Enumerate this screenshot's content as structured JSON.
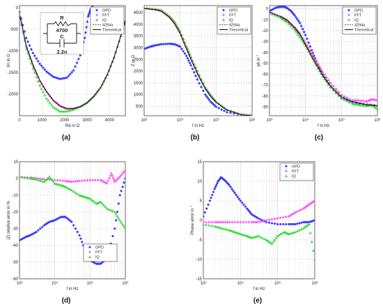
{
  "colors": {
    "GPD": "#3a3aff",
    "FFT": "#ff33ff",
    "IQ": "#33dd33",
    "4294a": "#cc2222",
    "Theoretical": "#111111"
  },
  "chart_data": [
    {
      "panel": "(a)",
      "type": "scatter",
      "xlabel": "Re in Ω",
      "ylabel": "Im in Ω",
      "xlim": [
        0,
        4700
      ],
      "ylim": [
        -2500,
        50
      ],
      "xticks": [
        "0",
        "1000",
        "2000",
        "3000",
        "4000"
      ],
      "yticks": [
        "0",
        "-500",
        "-1000",
        "-1500",
        "-2000"
      ],
      "xtick_vals": [
        0,
        1000,
        2000,
        3000,
        4000
      ],
      "ytick_vals": [
        0,
        -500,
        -1000,
        -1500,
        -2000
      ],
      "legend": "top-right",
      "inset": {
        "R_label": "R",
        "R_value": "4700",
        "C_label": "C",
        "C_value": "2.2n"
      },
      "series": [
        {
          "name": "GPD",
          "style": "marker",
          "x": [
            0,
            300,
            600,
            900,
            1200,
            1500,
            1800,
            2100,
            2400,
            2700,
            2900,
            3050,
            3150,
            3200,
            3250
          ],
          "y": [
            -100,
            -700,
            -1050,
            -1300,
            -1480,
            -1600,
            -1650,
            -1620,
            -1450,
            -1100,
            -700,
            -200,
            -50,
            0,
            20
          ]
        },
        {
          "name": "FFT",
          "style": "marker",
          "x": [
            20,
            300,
            600,
            900,
            1200,
            1500,
            1800,
            2100,
            2400,
            2700,
            3000,
            3300,
            3600,
            3900,
            4200,
            4500,
            4700
          ],
          "y": [
            -200,
            -900,
            -1350,
            -1700,
            -1950,
            -2150,
            -2280,
            -2340,
            -2330,
            -2290,
            -2200,
            -2050,
            -1850,
            -1550,
            -1150,
            -650,
            -300
          ]
        },
        {
          "name": "IQ",
          "style": "marker",
          "x": [
            20,
            300,
            600,
            900,
            1200,
            1500,
            1800,
            2100,
            2400,
            2700,
            3000,
            3300,
            3600,
            3900,
            4200,
            4500,
            4700
          ],
          "y": [
            -200,
            -950,
            -1400,
            -1800,
            -2100,
            -2300,
            -2400,
            -2400,
            -2350,
            -2290,
            -2200,
            -2050,
            -1850,
            -1550,
            -1150,
            -650,
            -300
          ]
        },
        {
          "name": "4294a",
          "style": "dashed",
          "x": [
            20,
            300,
            600,
            900,
            1200,
            1500,
            1800,
            2100,
            2400,
            2700,
            3000,
            3300,
            3600,
            3900,
            4200,
            4500,
            4700
          ],
          "y": [
            -200,
            -880,
            -1320,
            -1680,
            -1940,
            -2140,
            -2270,
            -2330,
            -2330,
            -2290,
            -2200,
            -2050,
            -1850,
            -1550,
            -1150,
            -650,
            -300
          ]
        },
        {
          "name": "Theoretical",
          "style": "line",
          "x": [
            20,
            300,
            600,
            900,
            1200,
            1500,
            1800,
            2100,
            2400,
            2700,
            3000,
            3300,
            3600,
            3900,
            4200,
            4500,
            4700
          ],
          "y": [
            -200,
            -880,
            -1320,
            -1680,
            -1940,
            -2140,
            -2270,
            -2340,
            -2340,
            -2290,
            -2200,
            -2050,
            -1850,
            -1550,
            -1150,
            -650,
            -300
          ]
        }
      ]
    },
    {
      "panel": "(b)",
      "type": "line",
      "xlabel": "f in Hz",
      "ylabel": "Z in Ω",
      "xscale": "log",
      "xlim": [
        1000,
        1000000
      ],
      "ylim": [
        100,
        4800
      ],
      "xticks": [
        "10³",
        "10⁴",
        "10⁵",
        "10⁶"
      ],
      "xtick_vals": [
        1000,
        10000,
        100000,
        1000000
      ],
      "yticks": [
        "4500",
        "4000",
        "3500",
        "3000",
        "2500",
        "2000",
        "1500",
        "1000",
        "500"
      ],
      "ytick_vals": [
        4500,
        4000,
        3500,
        3000,
        2500,
        2000,
        1500,
        1000,
        500
      ],
      "legend": "top-right",
      "series": [
        {
          "name": "GPD",
          "style": "marker",
          "x": [
            1000,
            1500,
            2000,
            3000,
            5000,
            7000,
            10000,
            15000,
            20000,
            30000,
            50000,
            70000,
            100000,
            200000,
            500000,
            1000000
          ],
          "y": [
            2950,
            3050,
            3100,
            3150,
            3170,
            3150,
            3050,
            2650,
            2250,
            1650,
            1000,
            700,
            480,
            250,
            140,
            110
          ]
        },
        {
          "name": "FFT",
          "style": "marker",
          "x": [
            1000,
            2000,
            3000,
            5000,
            7000,
            10000,
            15000,
            20000,
            30000,
            50000,
            70000,
            100000,
            200000,
            500000,
            1000000
          ],
          "y": [
            4700,
            4650,
            4600,
            4350,
            4100,
            3700,
            3050,
            2600,
            2000,
            1300,
            980,
            700,
            360,
            160,
            100
          ]
        },
        {
          "name": "IQ",
          "style": "marker",
          "x": [
            1000,
            2000,
            3000,
            5000,
            7000,
            10000,
            15000,
            20000,
            30000,
            50000,
            70000,
            100000,
            200000,
            500000,
            1000000
          ],
          "y": [
            4700,
            4650,
            4600,
            4350,
            4100,
            3700,
            3050,
            2600,
            2000,
            1300,
            980,
            700,
            360,
            160,
            100
          ]
        },
        {
          "name": "4294a",
          "style": "dashed",
          "x": [
            1000,
            2000,
            3000,
            5000,
            7000,
            10000,
            15000,
            20000,
            30000,
            50000,
            70000,
            100000,
            200000,
            500000,
            1000000
          ],
          "y": [
            4680,
            4640,
            4580,
            4320,
            4060,
            3650,
            3000,
            2550,
            1950,
            1270,
            950,
            680,
            350,
            150,
            100
          ]
        },
        {
          "name": "Theoretical",
          "style": "line",
          "x": [
            1000,
            2000,
            3000,
            5000,
            7000,
            10000,
            15000,
            20000,
            30000,
            50000,
            70000,
            100000,
            200000,
            500000,
            1000000
          ],
          "y": [
            4680,
            4620,
            4550,
            4300,
            4020,
            3600,
            2950,
            2500,
            1900,
            1250,
            930,
            670,
            340,
            145,
            90
          ]
        }
      ]
    },
    {
      "panel": "(c)",
      "type": "line",
      "xlabel": "f in Hz",
      "ylabel": "ph in °",
      "xscale": "log",
      "xlim": [
        1000,
        1000000
      ],
      "ylim": [
        -98,
        3
      ],
      "xticks": [
        "10³",
        "10⁴",
        "10⁵",
        "10⁶"
      ],
      "xtick_vals": [
        1000,
        10000,
        100000,
        1000000
      ],
      "yticks": [
        "0",
        "-10",
        "-20",
        "-30",
        "-40",
        "-50",
        "-60",
        "-70",
        "-80",
        "-90"
      ],
      "ytick_vals": [
        0,
        -10,
        -20,
        -30,
        -40,
        -50,
        -60,
        -70,
        -80,
        -90
      ],
      "legend": "top-right",
      "series": [
        {
          "name": "GPD",
          "style": "marker",
          "x": [
            1000,
            1500,
            2000,
            2500,
            3000,
            4000,
            5000,
            7000,
            10000,
            15000,
            20000,
            30000,
            50000,
            100000,
            200000,
            500000,
            1000000
          ],
          "y": [
            -2,
            1,
            2,
            2,
            1,
            -2,
            -6,
            -13,
            -24,
            -38,
            -48,
            -60,
            -72,
            -82,
            -86,
            -88,
            -89
          ]
        },
        {
          "name": "FFT",
          "style": "marker",
          "x": [
            1000,
            2000,
            3000,
            5000,
            7000,
            10000,
            15000,
            20000,
            30000,
            50000,
            100000,
            200000,
            300000,
            500000,
            700000,
            1000000
          ],
          "y": [
            -3,
            -7,
            -10,
            -17,
            -23,
            -31,
            -41,
            -48,
            -58,
            -68,
            -79,
            -84,
            -84,
            -85,
            -83,
            -84
          ]
        },
        {
          "name": "IQ",
          "style": "marker",
          "x": [
            1000,
            2000,
            3000,
            5000,
            7000,
            10000,
            15000,
            20000,
            30000,
            50000,
            100000,
            200000,
            300000,
            500000,
            700000,
            1000000
          ],
          "y": [
            -4,
            -8,
            -12,
            -19,
            -26,
            -34,
            -44,
            -52,
            -62,
            -72,
            -82,
            -87,
            -88,
            -89,
            -88,
            -92
          ]
        },
        {
          "name": "4294a",
          "style": "dashed",
          "x": [
            1000,
            2000,
            3000,
            5000,
            7000,
            10000,
            15000,
            20000,
            30000,
            50000,
            100000,
            200000,
            500000,
            1000000
          ],
          "y": [
            -3,
            -7,
            -11,
            -18,
            -24,
            -32,
            -42,
            -49,
            -59,
            -70,
            -80,
            -85,
            -87,
            -88
          ]
        },
        {
          "name": "Theoretical",
          "style": "line",
          "x": [
            1000,
            2000,
            3000,
            5000,
            7000,
            10000,
            15000,
            20000,
            30000,
            50000,
            100000,
            200000,
            500000,
            1000000
          ],
          "y": [
            -3,
            -7,
            -10,
            -17,
            -23,
            -33,
            -44,
            -51,
            -61,
            -71,
            -81,
            -85,
            -88,
            -89
          ]
        }
      ]
    },
    {
      "panel": "(d)",
      "type": "scatter",
      "xlabel": "f in Hz",
      "ylabel": "|Z| relative error in %",
      "xscale": "log",
      "xlim": [
        1000,
        1000000
      ],
      "ylim": [
        -60,
        10
      ],
      "xticks": [
        "10³",
        "10⁴",
        "10⁵",
        "10⁶"
      ],
      "xtick_vals": [
        1000,
        10000,
        100000,
        1000000
      ],
      "yticks": [
        "10",
        "0",
        "-10",
        "-20",
        "-30",
        "-40",
        "-50",
        "-60"
      ],
      "ytick_vals": [
        10,
        0,
        -10,
        -20,
        -30,
        -40,
        -50,
        -60
      ],
      "legend": "center-right",
      "series": [
        {
          "name": "GPD",
          "style": "marker",
          "x": [
            1000,
            1500,
            2000,
            3000,
            5000,
            7000,
            10000,
            15000,
            20000,
            30000,
            50000,
            70000,
            100000,
            150000,
            200000,
            300000,
            500000,
            700000,
            1000000
          ],
          "y": [
            -37,
            -35,
            -34,
            -32,
            -28,
            -26,
            -25,
            -23,
            -23,
            -26,
            -34,
            -42,
            -49,
            -51,
            -51,
            -48,
            -30,
            -10,
            0
          ]
        },
        {
          "name": "FFT",
          "style": "marker",
          "x": [
            1000,
            2000,
            3000,
            5000,
            10000,
            20000,
            30000,
            50000,
            100000,
            200000,
            300000,
            400000,
            500000,
            700000,
            1000000
          ],
          "y": [
            1,
            0.5,
            0,
            -0.5,
            -1,
            -1.5,
            -2,
            -1.5,
            -1,
            -1,
            -3,
            3,
            -2,
            1,
            5
          ]
        },
        {
          "name": "IQ",
          "style": "marker",
          "x": [
            1000,
            2000,
            3000,
            5000,
            7000,
            10000,
            15000,
            20000,
            30000,
            50000,
            70000,
            100000,
            150000,
            200000,
            300000,
            500000,
            700000,
            1000000
          ],
          "y": [
            1,
            0,
            -0.5,
            -2,
            1,
            -3,
            -4,
            -5,
            -7,
            -10,
            -11,
            -12,
            -15,
            -14,
            -18,
            -20,
            -25,
            -30
          ]
        }
      ]
    },
    {
      "panel": "(e)",
      "type": "scatter",
      "xlabel": "f in Hz",
      "ylabel": "Phase error in °",
      "xscale": "log",
      "xlim": [
        1000,
        1000000
      ],
      "ylim": [
        -15,
        15
      ],
      "xticks": [
        "10³",
        "10⁴",
        "10⁵",
        "10⁶"
      ],
      "xtick_vals": [
        1000,
        10000,
        100000,
        1000000
      ],
      "yticks": [
        "15",
        "10",
        "5",
        "0",
        "-5",
        "-10",
        "-15"
      ],
      "ytick_vals": [
        15,
        10,
        5,
        0,
        -5,
        -10,
        -15
      ],
      "legend": "top-right",
      "series": [
        {
          "name": "GPD",
          "style": "marker",
          "x": [
            1000,
            1500,
            2000,
            2500,
            3000,
            3500,
            4000,
            5000,
            7000,
            10000,
            15000,
            20000,
            30000,
            50000,
            100000,
            200000,
            300000,
            500000,
            700000,
            1000000
          ],
          "y": [
            1,
            5,
            8,
            10,
            11,
            10.5,
            10,
            9,
            7,
            5,
            3,
            1.5,
            0.5,
            -0.5,
            -1,
            -1,
            -1,
            -0.5,
            -0.5,
            0
          ]
        },
        {
          "name": "FFT",
          "style": "marker",
          "x": [
            1000,
            2000,
            3000,
            5000,
            10000,
            20000,
            30000,
            50000,
            100000,
            200000,
            300000,
            500000,
            700000,
            1000000
          ],
          "y": [
            -0.5,
            -0.5,
            -0.5,
            -0.5,
            -0.5,
            -0.5,
            -0.5,
            0,
            0.5,
            1,
            2,
            3,
            4,
            5
          ]
        },
        {
          "name": "IQ",
          "style": "marker",
          "x": [
            1000,
            2000,
            3000,
            5000,
            7000,
            10000,
            15000,
            20000,
            30000,
            50000,
            70000,
            100000,
            150000,
            200000,
            300000,
            500000,
            700000,
            1000000
          ],
          "y": [
            -1,
            -1.5,
            -2,
            -2.5,
            -3,
            -3.5,
            -4,
            -4.5,
            -4,
            -5,
            -6,
            -4,
            -3,
            -3.5,
            -3,
            -2,
            -1,
            -10
          ]
        }
      ]
    }
  ],
  "panel_labels": [
    "(a)",
    "(b)",
    "(c)",
    "(d)",
    "(e)"
  ]
}
